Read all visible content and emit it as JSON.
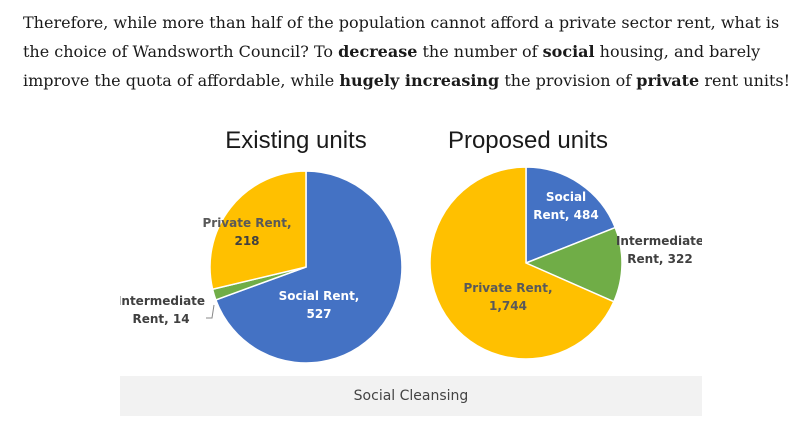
{
  "article": {
    "p1": "Therefore, while more than half of the population cannot afford a private sector rent, what is the choice of Wandsworth Council? To ",
    "b1": "decrease",
    "p2": " the number of ",
    "b2": "social",
    "p3": " housing, and barely improve the quota of affordable, while ",
    "b3": "hugely increasing",
    "p4": " the provision of ",
    "b4": "private",
    "p5": " rent units!"
  },
  "caption": "Social Cleansing",
  "colors": {
    "social": "#4472c4",
    "intermediate": "#70ad47",
    "private": "#ffc000"
  },
  "chart_data": [
    {
      "type": "pie",
      "title": "Existing units",
      "slices": [
        {
          "name": "Social Rent",
          "value": 527,
          "label_line1": "Social Rent,",
          "label_line2": "527",
          "color": "#4472c4"
        },
        {
          "name": "Intermediate Rent",
          "value": 14,
          "label_line1": "Intermediate",
          "label_line2": "Rent,  14",
          "color": "#70ad47"
        },
        {
          "name": "Private Rent",
          "value": 218,
          "label_line1": "Private Rent,",
          "label_line2": "218",
          "color": "#ffc000"
        }
      ]
    },
    {
      "type": "pie",
      "title": "Proposed units",
      "slices": [
        {
          "name": "Social Rent",
          "value": 484,
          "label_line1": "Social",
          "label_line2": "Rent,  484",
          "color": "#4472c4"
        },
        {
          "name": "Intermediate Rent",
          "value": 322,
          "label_line1": "Intermediate",
          "label_line2": "Rent,  322",
          "color": "#70ad47"
        },
        {
          "name": "Private Rent",
          "value": 1744,
          "label_line1": "Private Rent,",
          "label_line2": "1,744",
          "color": "#ffc000"
        }
      ]
    }
  ]
}
